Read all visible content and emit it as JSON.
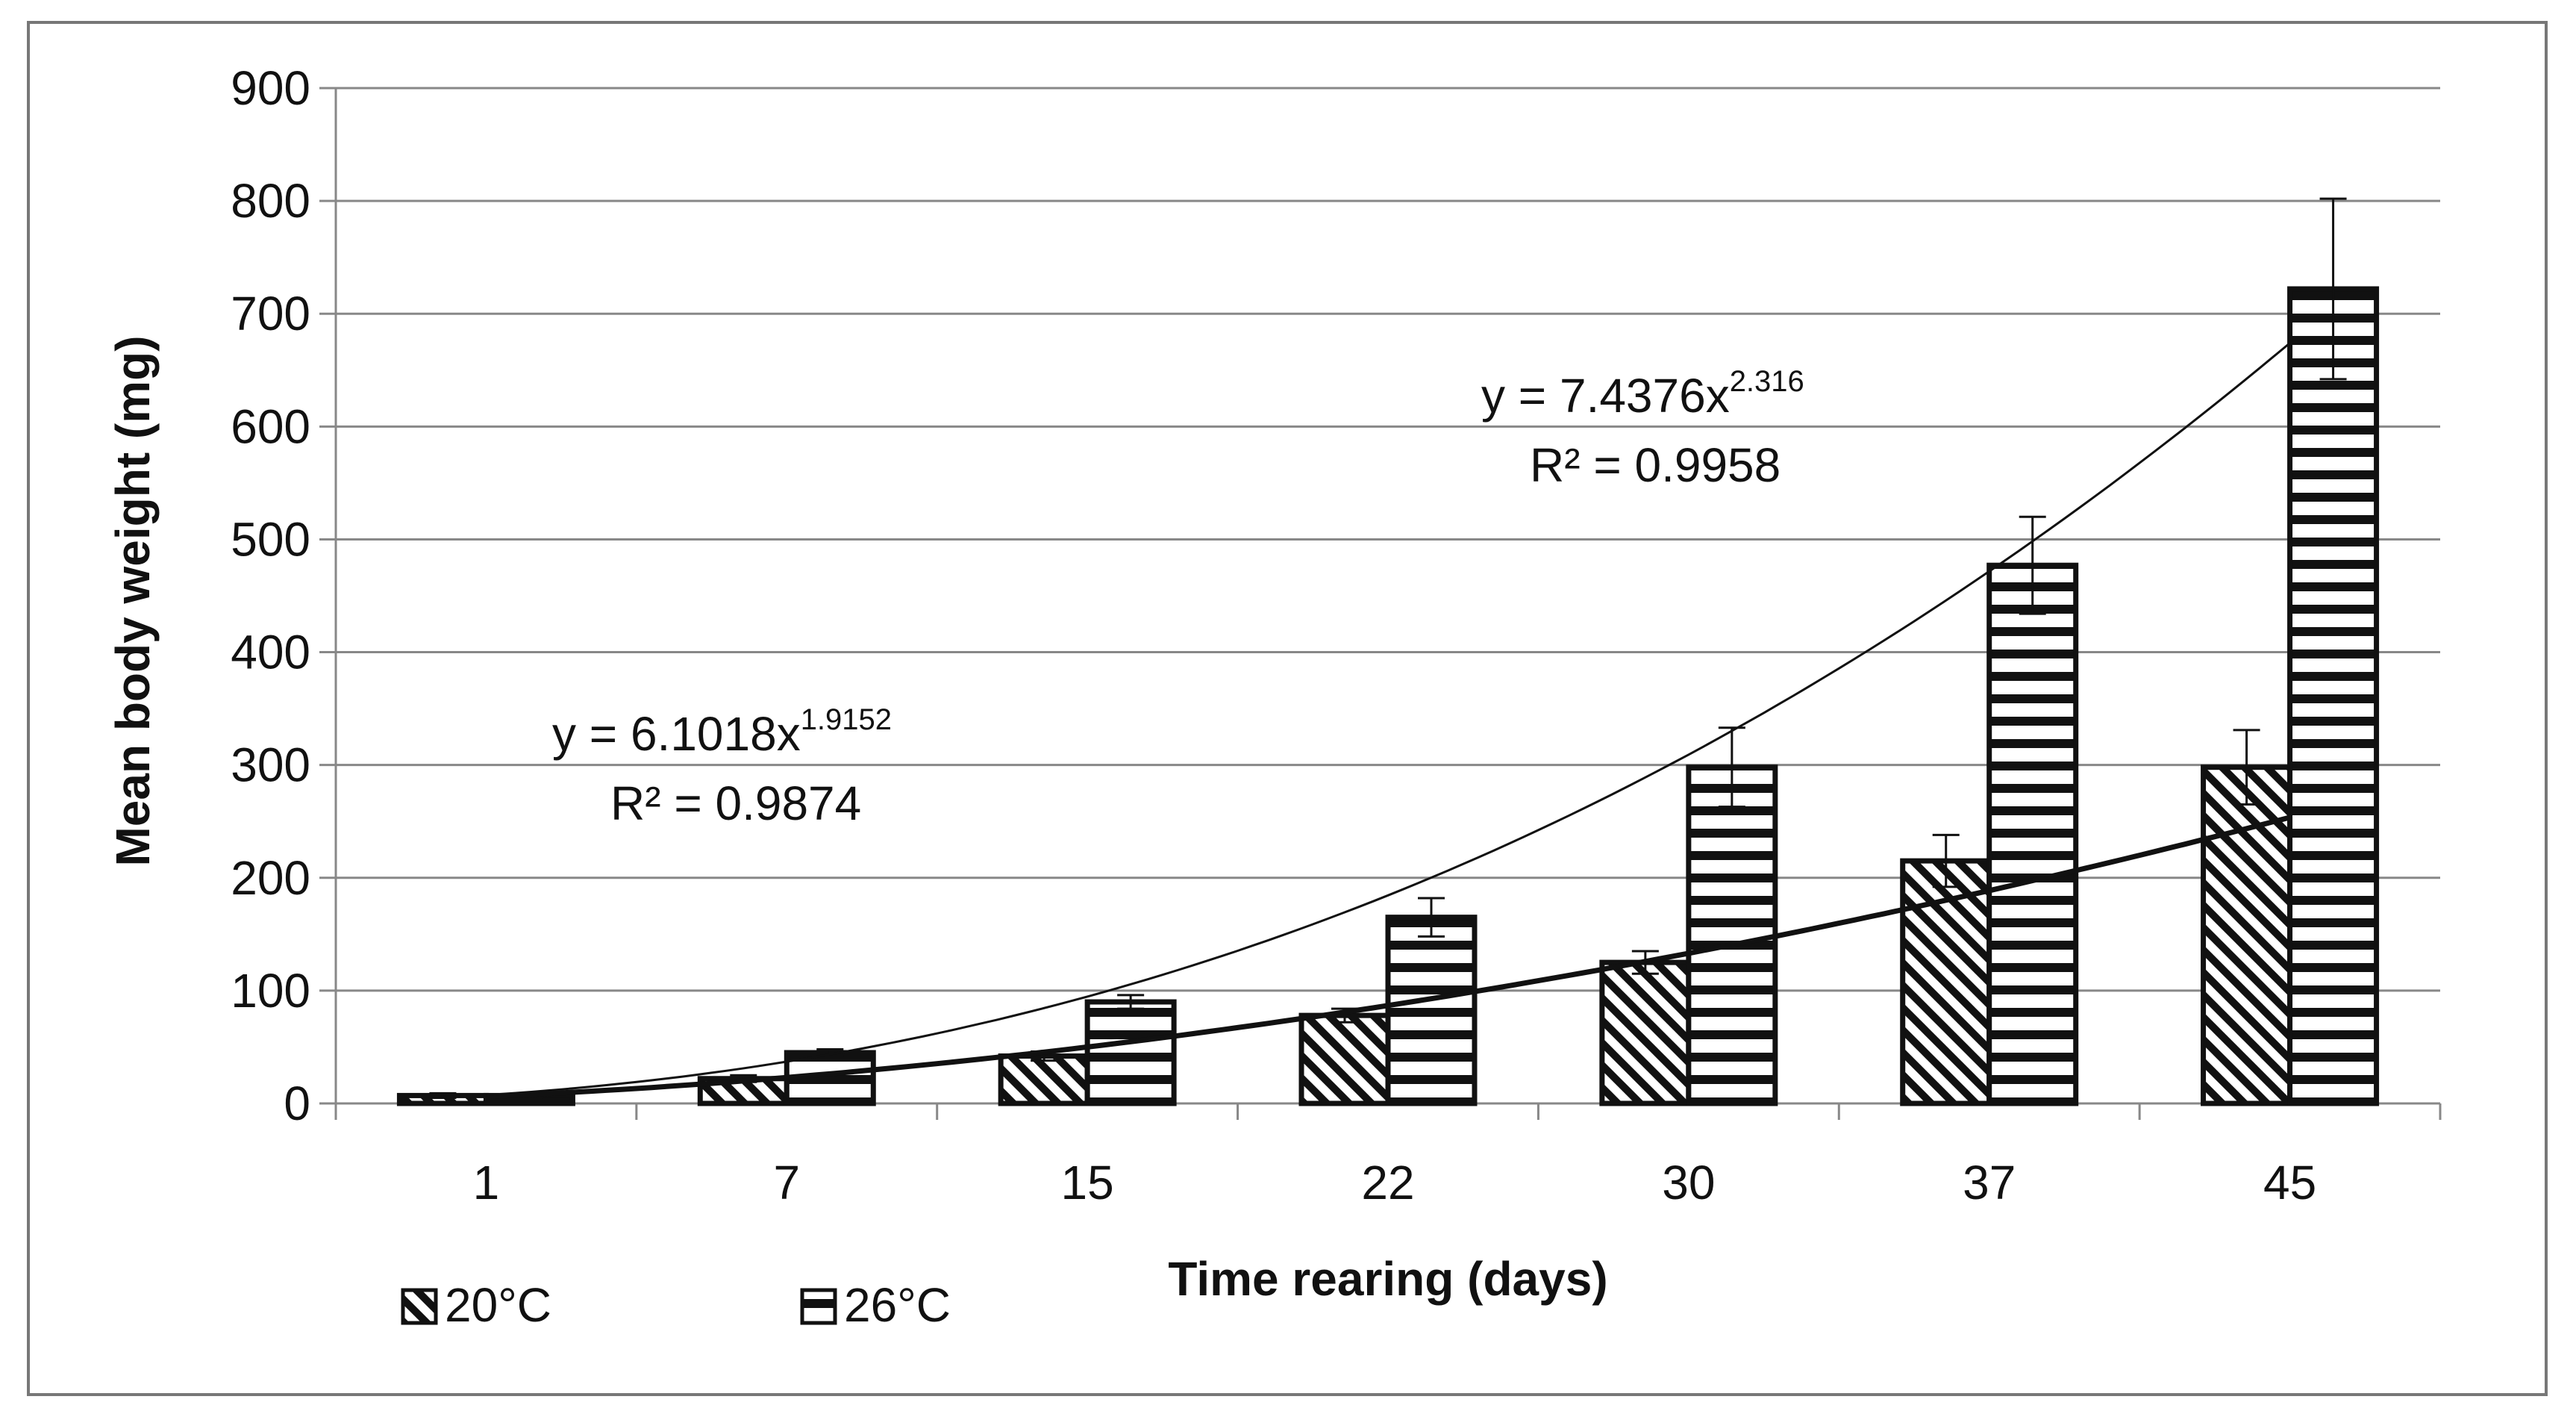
{
  "chart_data": {
    "type": "bar",
    "title": "",
    "xlabel": "Time rearing (days)",
    "ylabel": "Mean body weight (mg)",
    "ylim": [
      0,
      900
    ],
    "yticks": [
      "0",
      "100",
      "200",
      "300",
      "400",
      "500",
      "600",
      "700",
      "800",
      "900"
    ],
    "categories": [
      "1",
      "7",
      "15",
      "22",
      "30",
      "37",
      "45"
    ],
    "grid": true,
    "legend_position": "bottom-left",
    "series": [
      {
        "name": "20°C",
        "pattern": "diagonal-hatch",
        "values": [
          7,
          22,
          42,
          78,
          125,
          215,
          298
        ],
        "errors": [
          2,
          3,
          4,
          6,
          10,
          23,
          33
        ]
      },
      {
        "name": "26°C",
        "pattern": "horizontal-hatch",
        "values": [
          7,
          45,
          90,
          165,
          298,
          477,
          722
        ],
        "errors": [
          2,
          3,
          6,
          17,
          35,
          43,
          80
        ]
      }
    ],
    "trendlines": [
      {
        "series": "20°C",
        "type": "power",
        "a": 6.1018,
        "b": 1.9152,
        "equation_prefix": "y = 6.1018x",
        "equation_exponent": "1.9152",
        "r_squared": "R² = 0.9874"
      },
      {
        "series": "26°C",
        "type": "power",
        "a": 7.4376,
        "b": 2.316,
        "equation_prefix": "y = 7.4376x",
        "equation_exponent": "2.316",
        "r_squared": "R² = 0.9958"
      }
    ],
    "colors": {
      "ink": "#111111",
      "grid": "#888888",
      "background": "#ffffff"
    }
  }
}
